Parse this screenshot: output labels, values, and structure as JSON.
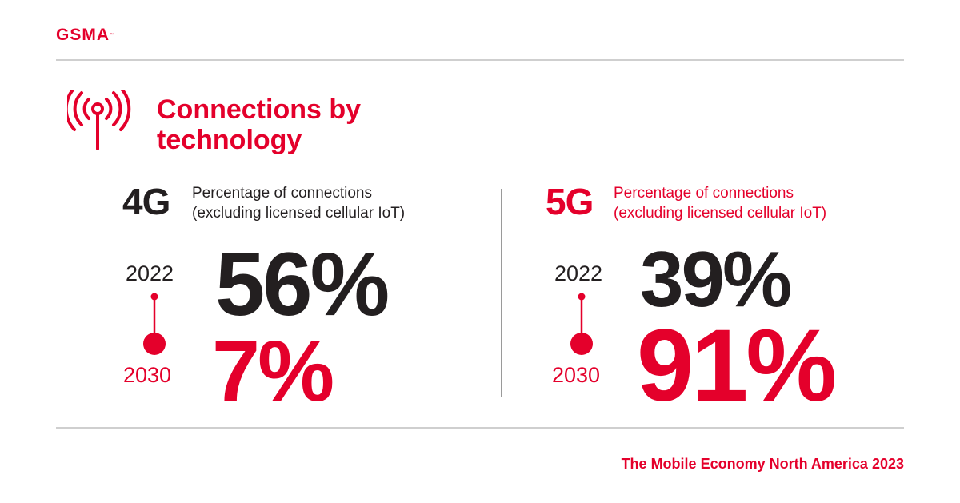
{
  "brand": {
    "logo_text": "GSMA",
    "trademark": "™",
    "accent": "#e4002b",
    "text_dark": "#231f20"
  },
  "header": {
    "title": "Connections by technology",
    "icon": "antenna-signal-icon"
  },
  "panels": [
    {
      "technology": "4G",
      "description_line1": "Percentage of connections",
      "description_line2": "(excluding licensed cellular IoT)",
      "year_start": "2022",
      "value_start": "56%",
      "year_end": "2030",
      "value_end": "7%"
    },
    {
      "technology": "5G",
      "description_line1": "Percentage of connections",
      "description_line2": "(excluding licensed cellular IoT)",
      "year_start": "2022",
      "value_start": "39%",
      "year_end": "2030",
      "value_end": "91%"
    }
  ],
  "footer": {
    "source": "The Mobile Economy North America 2023"
  }
}
